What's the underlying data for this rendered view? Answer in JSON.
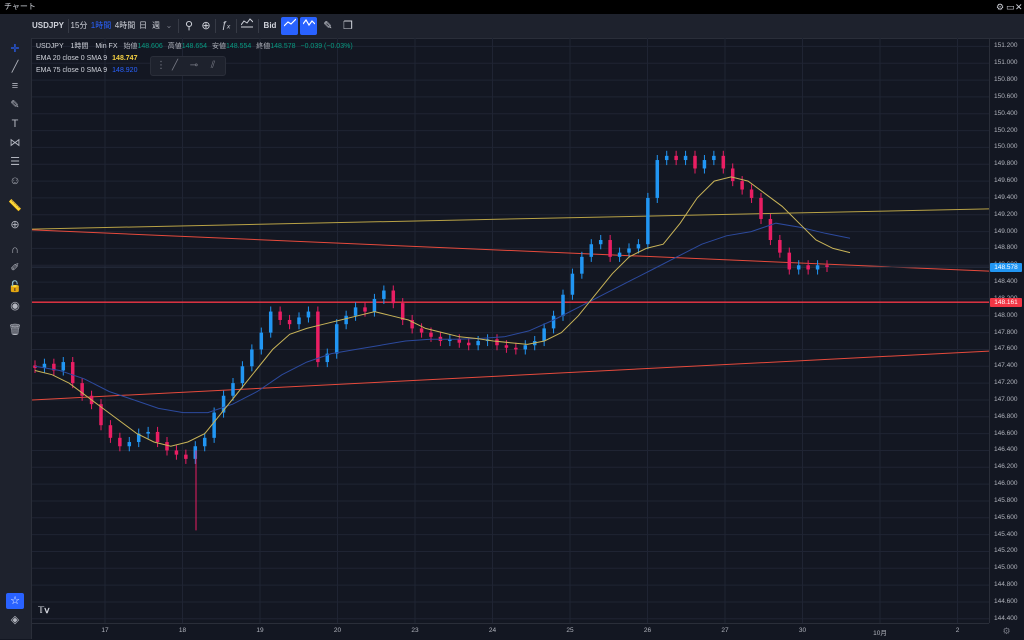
{
  "window": {
    "title": "チャート",
    "controls": [
      "⚙",
      "▭",
      "✕"
    ]
  },
  "toolbar": {
    "symbol": "USDJPY",
    "interval_15m": "15分",
    "interval_1h": "1時間",
    "interval_4h": "4時間",
    "interval_d": "日",
    "interval_w": "週",
    "price_type": "Bid"
  },
  "legend": {
    "symbol": "USDJPY",
    "interval": "1時間",
    "source": "Min FX",
    "open_label": "始値",
    "open": "148.606",
    "high_label": "高値",
    "high": "148.654",
    "low_label": "安値",
    "low": "148.554",
    "close_label": "終値",
    "close": "148.578",
    "change": "−0.039 (−0.03%)",
    "ema20_label": "EMA 20 close 0 SMA 9",
    "ema20_value": "148.747",
    "ema75_label": "EMA 75 close 0 SMA 9",
    "ema75_value": "148.920"
  },
  "price_axis": {
    "ticks": [
      "151.200",
      "151.000",
      "150.800",
      "150.600",
      "150.400",
      "150.200",
      "150.000",
      "149.800",
      "149.600",
      "149.400",
      "149.200",
      "149.000",
      "148.800",
      "148.600",
      "148.400",
      "148.200",
      "148.000",
      "147.800",
      "147.600",
      "147.400",
      "147.200",
      "147.000",
      "146.800",
      "146.600",
      "146.400",
      "146.200",
      "146.000",
      "145.800",
      "145.600",
      "145.400",
      "145.200",
      "145.000",
      "144.800",
      "144.600",
      "144.400"
    ],
    "current_price": "148.578",
    "current_color": "#2196f3",
    "line_price": "148.161",
    "line_color": "#f23645"
  },
  "time_axis": {
    "labels": [
      "17",
      "18",
      "19",
      "20",
      "23",
      "24",
      "25",
      "26",
      "27",
      "30",
      "10月",
      "2"
    ]
  },
  "colors": {
    "bg": "#131722",
    "up": "#2196f3",
    "down": "#e91e63",
    "ema20": "#c9b458",
    "ema75": "#2c4a9e",
    "trend_red": "#e64a3c",
    "trend_yellow": "#b8a246"
  },
  "chart_data": {
    "type": "candlestick",
    "ylim": [
      144.35,
      151.3
    ],
    "x_categories": [
      "17",
      "18",
      "19",
      "20",
      "23",
      "24",
      "25",
      "26",
      "27",
      "30",
      "10月",
      "2"
    ],
    "candles_close": [
      147.38,
      147.43,
      147.35,
      147.45,
      147.2,
      147.05,
      146.95,
      146.7,
      146.55,
      146.45,
      146.5,
      146.6,
      146.62,
      146.5,
      146.4,
      146.35,
      146.3,
      146.45,
      146.55,
      146.85,
      147.05,
      147.2,
      147.4,
      147.6,
      147.8,
      148.05,
      147.95,
      147.9,
      147.98,
      148.05,
      147.45,
      147.55,
      147.9,
      148.0,
      148.1,
      148.05,
      148.2,
      148.3,
      148.15,
      147.95,
      147.85,
      147.8,
      147.75,
      147.7,
      147.72,
      147.68,
      147.65,
      147.7,
      147.72,
      147.65,
      147.62,
      147.6,
      147.65,
      147.7,
      147.85,
      148.0,
      148.25,
      148.5,
      148.7,
      148.85,
      148.9,
      148.7,
      148.75,
      148.8,
      148.85,
      149.4,
      149.85,
      149.9,
      149.85,
      149.9,
      149.75,
      149.85,
      149.9,
      149.75,
      149.6,
      149.5,
      149.4,
      149.15,
      148.9,
      148.75,
      148.55,
      148.6,
      148.55,
      148.6,
      148.58
    ],
    "ema20": [
      147.35,
      147.3,
      147.2,
      147.05,
      146.9,
      146.75,
      146.6,
      146.5,
      146.45,
      146.5,
      146.6,
      146.85,
      147.1,
      147.35,
      147.6,
      147.78,
      147.85,
      147.9,
      147.95,
      148.0,
      148.05,
      148.0,
      147.95,
      147.85,
      147.8,
      147.75,
      147.73,
      147.7,
      147.68,
      147.66,
      147.7,
      147.8,
      148.0,
      148.25,
      148.5,
      148.7,
      148.8,
      148.85,
      149.1,
      149.4,
      149.6,
      149.65,
      149.6,
      149.45,
      149.3,
      149.1,
      148.9,
      148.8,
      148.75
    ],
    "ema75": [
      147.4,
      147.35,
      147.25,
      147.1,
      147.0,
      146.9,
      146.85,
      146.85,
      146.95,
      147.1,
      147.3,
      147.45,
      147.55,
      147.6,
      147.65,
      147.7,
      147.72,
      147.72,
      147.73,
      147.75,
      147.82,
      147.95,
      148.1,
      148.25,
      148.4,
      148.55,
      148.7,
      148.85,
      148.95,
      149.0,
      149.1,
      149.05,
      148.98,
      148.92
    ]
  }
}
